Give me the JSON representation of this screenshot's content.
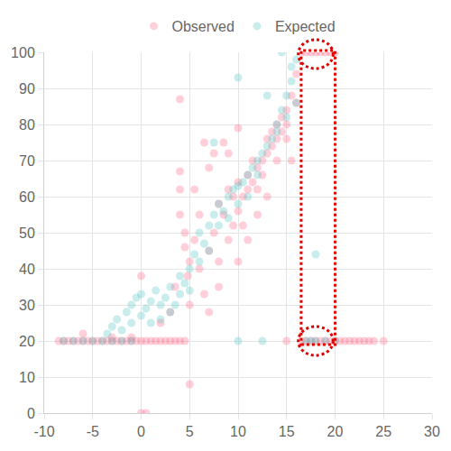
{
  "chart_data": {
    "type": "scatter",
    "marker": "circle",
    "grid": true,
    "legend": "top",
    "xlim": [
      -10,
      30
    ],
    "xticks": [
      -10,
      -5,
      0,
      5,
      10,
      15,
      20,
      25,
      30
    ],
    "ylim": [
      0,
      100
    ],
    "yticks": [
      0,
      10,
      20,
      30,
      40,
      50,
      60,
      70,
      80,
      90,
      100
    ],
    "series": [
      {
        "name": "Observed",
        "color": "#ff6384",
        "x": [
          -8.5,
          -8,
          -7.5,
          -7,
          -6.5,
          -6,
          -5.5,
          -5,
          -4.5,
          -4,
          -3.5,
          -3,
          -2.5,
          -2,
          -1.5,
          -1,
          -0.5,
          0,
          0.5,
          1,
          1.5,
          2,
          2.5,
          3,
          3.5,
          4,
          4.5,
          -6,
          -3,
          -1,
          0,
          0.5,
          0,
          2,
          3,
          3.5,
          4,
          4,
          4,
          4,
          4.5,
          4.5,
          4.8,
          5,
          5,
          5,
          5.5,
          5.5,
          6,
          6,
          6.5,
          6.5,
          7,
          7,
          7,
          7.5,
          7.5,
          8,
          8,
          8,
          8.5,
          8.5,
          9,
          9,
          9,
          9.5,
          9.5,
          10,
          10,
          10,
          10,
          10.5,
          10.5,
          11,
          11,
          11,
          11.5,
          11.5,
          12,
          12,
          12,
          12.5,
          12.5,
          13,
          13,
          13,
          13.5,
          13.5,
          14,
          14,
          14,
          14.5,
          14.5,
          15,
          15,
          15,
          15.5,
          15.5,
          16,
          16,
          16.5,
          17,
          17.5,
          18,
          18.5,
          19,
          19.5,
          20,
          16.5,
          17,
          17.5,
          18,
          18.5,
          19,
          19.5,
          20,
          20.5,
          21,
          21.5,
          22,
          22.5,
          23,
          23.5,
          24,
          25,
          15
        ],
        "values": [
          20,
          20,
          20,
          20,
          20,
          20,
          20,
          20,
          20,
          20,
          20,
          20,
          20,
          20,
          20,
          20,
          20,
          20,
          20,
          20,
          20,
          20,
          20,
          20,
          20,
          20,
          20,
          22,
          21,
          21,
          0,
          0,
          38,
          25,
          28,
          35,
          87,
          67,
          62,
          55,
          46,
          50,
          38,
          8,
          30,
          42,
          62,
          48,
          55,
          40,
          33,
          75,
          28,
          45,
          68,
          50,
          72,
          35,
          58,
          42,
          55,
          75,
          48,
          62,
          72,
          52,
          60,
          56,
          64,
          79,
          42,
          60,
          52,
          62,
          66,
          48,
          64,
          70,
          68,
          62,
          55,
          70,
          66,
          72,
          76,
          60,
          74,
          78,
          76,
          70,
          80,
          82,
          78,
          84,
          80,
          76,
          88,
          70,
          86,
          94,
          100,
          100,
          100,
          100,
          100,
          100,
          100,
          100,
          20,
          20,
          20,
          20,
          20,
          20,
          20,
          20,
          20,
          20,
          20,
          20,
          20,
          20,
          20,
          20,
          20,
          20
        ]
      },
      {
        "name": "Expected",
        "color": "#4bc0c0",
        "x": [
          -8,
          -7,
          -6,
          -5,
          -4,
          -3,
          -2,
          -1,
          -3.5,
          -3,
          -2.5,
          -2,
          -1.5,
          -1,
          -1,
          -0.5,
          0,
          0,
          0.5,
          1,
          1,
          1.5,
          2,
          2,
          2.5,
          3,
          3,
          3.5,
          4,
          4,
          4.5,
          5,
          5,
          5.5,
          6,
          6,
          6.5,
          7,
          7,
          7.5,
          7.5,
          8,
          8,
          8.5,
          9,
          9,
          9.5,
          10,
          10,
          10,
          10,
          10.5,
          11,
          11,
          11.5,
          12,
          12,
          12.5,
          12.5,
          13,
          13,
          13.5,
          14,
          14,
          14.5,
          14.5,
          15,
          15,
          15.5,
          15.5,
          16,
          16,
          17,
          17.5,
          18,
          18,
          19,
          20
        ],
        "values": [
          20,
          20,
          20,
          20,
          20,
          20,
          20,
          20,
          22,
          24,
          26,
          23,
          28,
          25,
          30,
          32,
          27,
          33,
          29,
          31,
          25,
          34,
          30,
          26,
          32,
          28,
          35,
          30,
          33,
          38,
          36,
          40,
          34,
          44,
          42,
          50,
          47,
          52,
          45,
          75,
          55,
          52,
          58,
          56,
          60,
          54,
          62,
          63,
          58,
          93,
          20,
          64,
          66,
          60,
          68,
          70,
          66,
          72,
          20,
          74,
          88,
          76,
          80,
          78,
          84,
          100,
          88,
          82,
          92,
          96,
          98,
          86,
          20,
          20,
          20,
          44,
          20,
          20
        ]
      }
    ]
  }
}
